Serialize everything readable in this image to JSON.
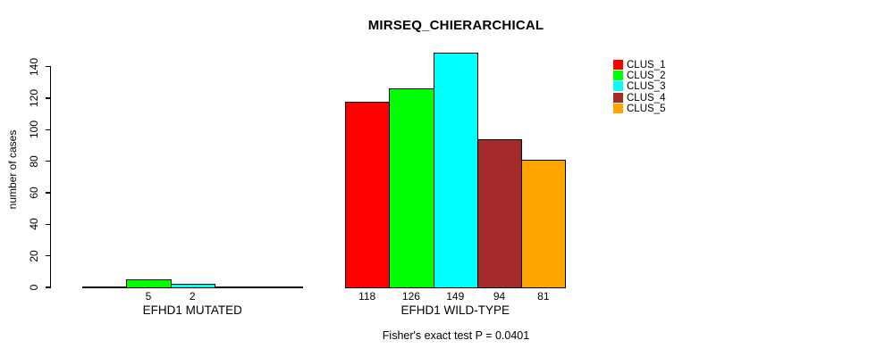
{
  "chart_data": {
    "type": "bar",
    "title": "MIRSEQ_CHIERARCHICAL",
    "ylabel": "number of cases",
    "xlabel": "",
    "annotation": "Fisher's exact test P = 0.0401",
    "ylim": [
      0,
      155
    ],
    "yticks": [
      0,
      20,
      40,
      60,
      80,
      100,
      120,
      140
    ],
    "grid": false,
    "legend_position": "top-right",
    "legend": [
      {
        "label": "CLUS_1",
        "color": "#FF0000"
      },
      {
        "label": "CLUS_2",
        "color": "#00FF00"
      },
      {
        "label": "CLUS_3",
        "color": "#00FFFF"
      },
      {
        "label": "CLUS_4",
        "color": "#A52A2A"
      },
      {
        "label": "CLUS_5",
        "color": "#FFA500"
      }
    ],
    "groups": [
      {
        "label": "EFHD1 MUTATED",
        "values": [
          null,
          5,
          2,
          null,
          null
        ]
      },
      {
        "label": "EFHD1 WILD-TYPE",
        "values": [
          118,
          126,
          149,
          94,
          81
        ]
      }
    ]
  }
}
